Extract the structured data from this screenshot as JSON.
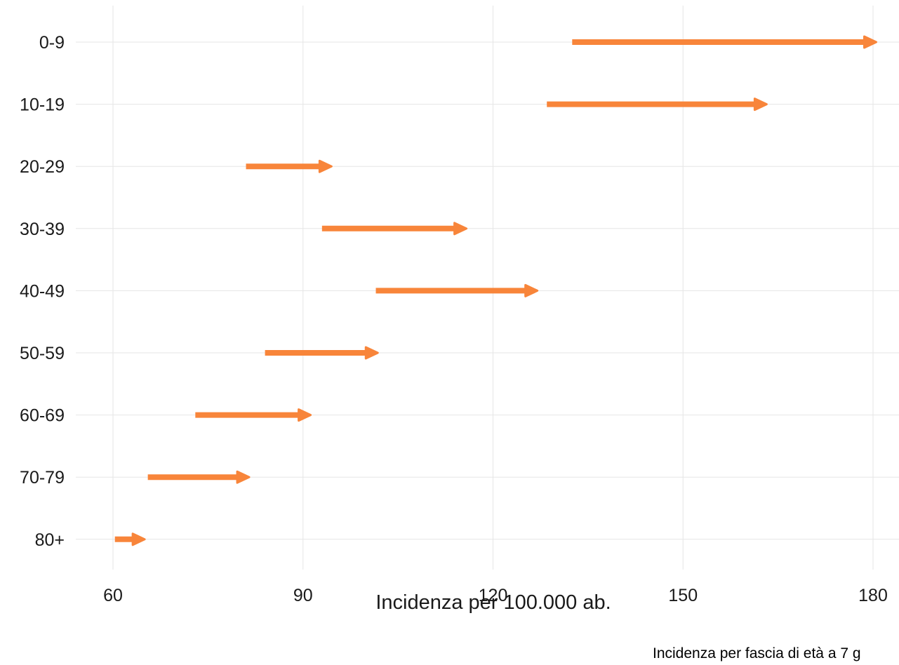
{
  "chart_data": {
    "type": "arrow",
    "xlabel": "Incidenza per 100.000 ab.",
    "ylabel": "",
    "xlim": [
      60,
      180
    ],
    "x_ticks": [
      "60",
      "90",
      "120",
      "150",
      "180"
    ],
    "categories": [
      "0-9",
      "10-19",
      "20-29",
      "30-39",
      "40-49",
      "50-59",
      "60-69",
      "70-79",
      "80+"
    ],
    "start": [
      132.5,
      128.5,
      81,
      93,
      101.5,
      84,
      73,
      65.5,
      60.3
    ],
    "end": [
      180.5,
      163.2,
      94.5,
      115.8,
      127,
      101.8,
      91.2,
      81.5,
      65
    ],
    "grid": true,
    "caption": "Incidenza per fascia di età a 7 g",
    "colors": {
      "arrow": "#F8853A",
      "grid": "#E6E6E6",
      "text": "#1A1A1A"
    }
  }
}
